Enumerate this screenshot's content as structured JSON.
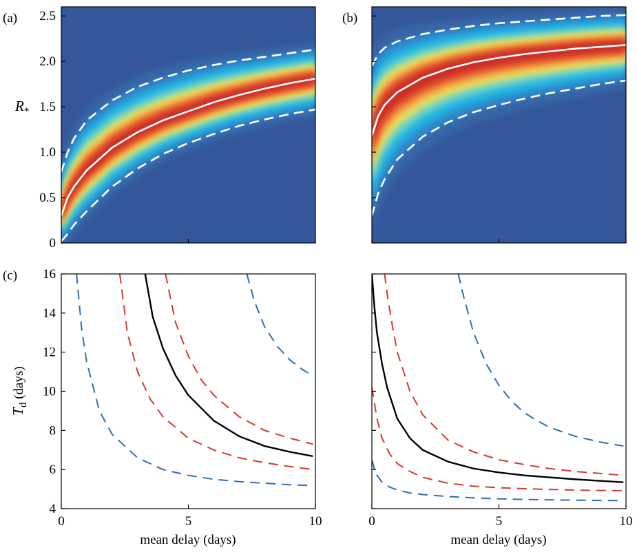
{
  "colors": {
    "heatmap_background": "#33579a",
    "median_line": "#ffffff",
    "interval_lines": "#ffffff",
    "estimate_line": "#000000",
    "red_dashed": "#d9362f",
    "blue_dashed": "#2f6db5"
  },
  "chart_data": [
    {
      "panel": "a",
      "panel_label": "(a)",
      "type": "heatmap",
      "ylabel": "R*",
      "ylabel_main": "R",
      "ylabel_sub": "*",
      "xlim": [
        0,
        10
      ],
      "ylim": [
        0,
        2.6
      ],
      "yticks": [
        "0",
        "0.5",
        "1.0",
        "1.5",
        "2.0",
        "2.5"
      ],
      "xticks": [
        "",
        "",
        ""
      ],
      "grid": false,
      "series": [
        {
          "style": "solid",
          "x": [
            0,
            0.25,
            0.5,
            1,
            2,
            3,
            4,
            5,
            6,
            7,
            8,
            9,
            10
          ],
          "values": [
            0.3,
            0.5,
            0.62,
            0.8,
            1.05,
            1.22,
            1.35,
            1.45,
            1.55,
            1.63,
            1.7,
            1.76,
            1.81
          ]
        },
        {
          "style": "dashed",
          "x": [
            0,
            0.25,
            0.5,
            1,
            2,
            3,
            4,
            5,
            6,
            7,
            8,
            9,
            10
          ],
          "values": [
            0.78,
            1.0,
            1.15,
            1.35,
            1.57,
            1.72,
            1.82,
            1.9,
            1.96,
            2.01,
            2.05,
            2.09,
            2.13
          ]
        },
        {
          "style": "dashed",
          "x": [
            0,
            0.25,
            0.5,
            1,
            2,
            3,
            4,
            5,
            6,
            7,
            8,
            9,
            10
          ],
          "values": [
            0.02,
            0.1,
            0.2,
            0.35,
            0.62,
            0.82,
            0.98,
            1.1,
            1.2,
            1.29,
            1.36,
            1.42,
            1.47
          ]
        }
      ]
    },
    {
      "panel": "b",
      "panel_label": "(b)",
      "type": "heatmap",
      "xlim": [
        0,
        10
      ],
      "ylim": [
        0,
        2.6
      ],
      "yticks": [
        "",
        "",
        "",
        "",
        "",
        ""
      ],
      "xticks": [
        "",
        "",
        ""
      ],
      "grid": false,
      "series": [
        {
          "style": "solid",
          "x": [
            0,
            0.25,
            0.5,
            1,
            2,
            3,
            4,
            5,
            6,
            7,
            8,
            9,
            10
          ],
          "values": [
            1.18,
            1.4,
            1.52,
            1.66,
            1.82,
            1.92,
            1.99,
            2.04,
            2.08,
            2.11,
            2.14,
            2.16,
            2.18
          ]
        },
        {
          "style": "dashed",
          "x": [
            0,
            0.25,
            0.5,
            1,
            2,
            3,
            4,
            5,
            6,
            7,
            8,
            9,
            10
          ],
          "values": [
            1.95,
            2.08,
            2.15,
            2.22,
            2.3,
            2.35,
            2.39,
            2.42,
            2.44,
            2.46,
            2.48,
            2.5,
            2.51
          ]
        },
        {
          "style": "dashed",
          "x": [
            0,
            0.25,
            0.5,
            1,
            2,
            3,
            4,
            5,
            6,
            7,
            8,
            9,
            10
          ],
          "values": [
            0.3,
            0.55,
            0.7,
            0.92,
            1.17,
            1.33,
            1.44,
            1.52,
            1.59,
            1.65,
            1.7,
            1.75,
            1.79
          ]
        }
      ]
    },
    {
      "panel": "c",
      "panel_label": "(c)",
      "type": "line",
      "xlabel": "mean delay (days)",
      "ylabel": "Td (days)",
      "ylabel_main": "T",
      "ylabel_sub": "d",
      "ylabel_rest": " (days)",
      "xlim": [
        0,
        10
      ],
      "ylim": [
        4,
        16
      ],
      "xticks": [
        "0",
        "5",
        "10"
      ],
      "yticks": [
        "4",
        "6",
        "8",
        "10",
        "12",
        "14",
        "16"
      ],
      "grid": false,
      "series": [
        {
          "color": "black",
          "style": "solid",
          "x": [
            3.3,
            3.6,
            4,
            4.5,
            5,
            6,
            7,
            8,
            9,
            9.9
          ],
          "values": [
            16,
            13.8,
            12.2,
            10.8,
            9.8,
            8.5,
            7.7,
            7.2,
            6.9,
            6.68
          ]
        },
        {
          "color": "red",
          "style": "dashed",
          "x": [
            2.3,
            2.6,
            3,
            3.5,
            4,
            5,
            6,
            7,
            8,
            9,
            9.9
          ],
          "values": [
            16,
            13.0,
            11.0,
            9.6,
            8.7,
            7.6,
            7.0,
            6.6,
            6.35,
            6.15,
            6.0
          ]
        },
        {
          "color": "red",
          "style": "dashed",
          "x": [
            4.1,
            4.5,
            5,
            5.5,
            6,
            7,
            8,
            9,
            9.9
          ],
          "values": [
            16,
            13.5,
            11.8,
            10.6,
            9.8,
            8.7,
            8.0,
            7.6,
            7.3
          ]
        },
        {
          "color": "blue",
          "style": "dashed",
          "x": [
            0.6,
            0.8,
            1,
            1.5,
            2,
            3,
            4,
            5,
            6,
            7,
            8,
            9,
            9.9
          ],
          "values": [
            16,
            13.2,
            11.5,
            9.0,
            7.8,
            6.6,
            6.0,
            5.7,
            5.5,
            5.38,
            5.3,
            5.22,
            5.18
          ]
        },
        {
          "color": "blue",
          "style": "dashed",
          "x": [
            7.3,
            7.6,
            8,
            8.5,
            9,
            9.5,
            9.9
          ],
          "values": [
            16,
            14.6,
            13.3,
            12.3,
            11.6,
            11.1,
            10.8
          ]
        }
      ]
    },
    {
      "panel": "d",
      "type": "line",
      "xlabel": "mean delay (days)",
      "xlim": [
        0,
        10
      ],
      "ylim": [
        4,
        16
      ],
      "xticks": [
        "0",
        "5",
        "10"
      ],
      "yticks": [
        "",
        "",
        "",
        "",
        "",
        "",
        ""
      ],
      "grid": false,
      "series": [
        {
          "color": "black",
          "style": "solid",
          "x": [
            0,
            0.1,
            0.2,
            0.4,
            0.6,
            1,
            1.5,
            2,
            3,
            4,
            5,
            6,
            7,
            8,
            9,
            9.9
          ],
          "values": [
            16,
            14.3,
            13.0,
            11.4,
            10.2,
            8.6,
            7.6,
            7.0,
            6.4,
            6.05,
            5.85,
            5.7,
            5.6,
            5.5,
            5.42,
            5.35
          ]
        },
        {
          "color": "red",
          "style": "dashed",
          "x": [
            0.5,
            0.6,
            0.8,
            1,
            1.5,
            2,
            3,
            4,
            5,
            6,
            7,
            8,
            9,
            9.9
          ],
          "values": [
            16,
            15.0,
            13.4,
            12.0,
            10.0,
            8.8,
            7.5,
            6.9,
            6.5,
            6.25,
            6.05,
            5.9,
            5.8,
            5.7
          ]
        },
        {
          "color": "red",
          "style": "dashed",
          "x": [
            0.0,
            0.2,
            0.4,
            0.7,
            1,
            1.5,
            2,
            3,
            4,
            5,
            6,
            7,
            8,
            9,
            9.9
          ],
          "values": [
            10.2,
            8.6,
            7.6,
            6.8,
            6.3,
            5.9,
            5.6,
            5.3,
            5.15,
            5.07,
            5.02,
            4.98,
            4.95,
            4.93,
            4.92
          ]
        },
        {
          "color": "blue",
          "style": "dashed",
          "x": [
            3.4,
            3.6,
            4,
            4.5,
            5,
            5.5,
            6,
            6.5,
            7,
            8,
            9,
            9.9
          ],
          "values": [
            16,
            14.9,
            13.0,
            11.4,
            10.3,
            9.5,
            8.9,
            8.5,
            8.15,
            7.7,
            7.4,
            7.2
          ]
        },
        {
          "color": "blue",
          "style": "dashed",
          "x": [
            0.0,
            0.15,
            0.4,
            0.7,
            1,
            1.5,
            2,
            3,
            4,
            5,
            6,
            7,
            8,
            9,
            9.9
          ],
          "values": [
            6.5,
            5.8,
            5.35,
            5.1,
            4.95,
            4.8,
            4.72,
            4.62,
            4.55,
            4.5,
            4.47,
            4.45,
            4.43,
            4.42,
            4.41
          ]
        }
      ]
    }
  ]
}
